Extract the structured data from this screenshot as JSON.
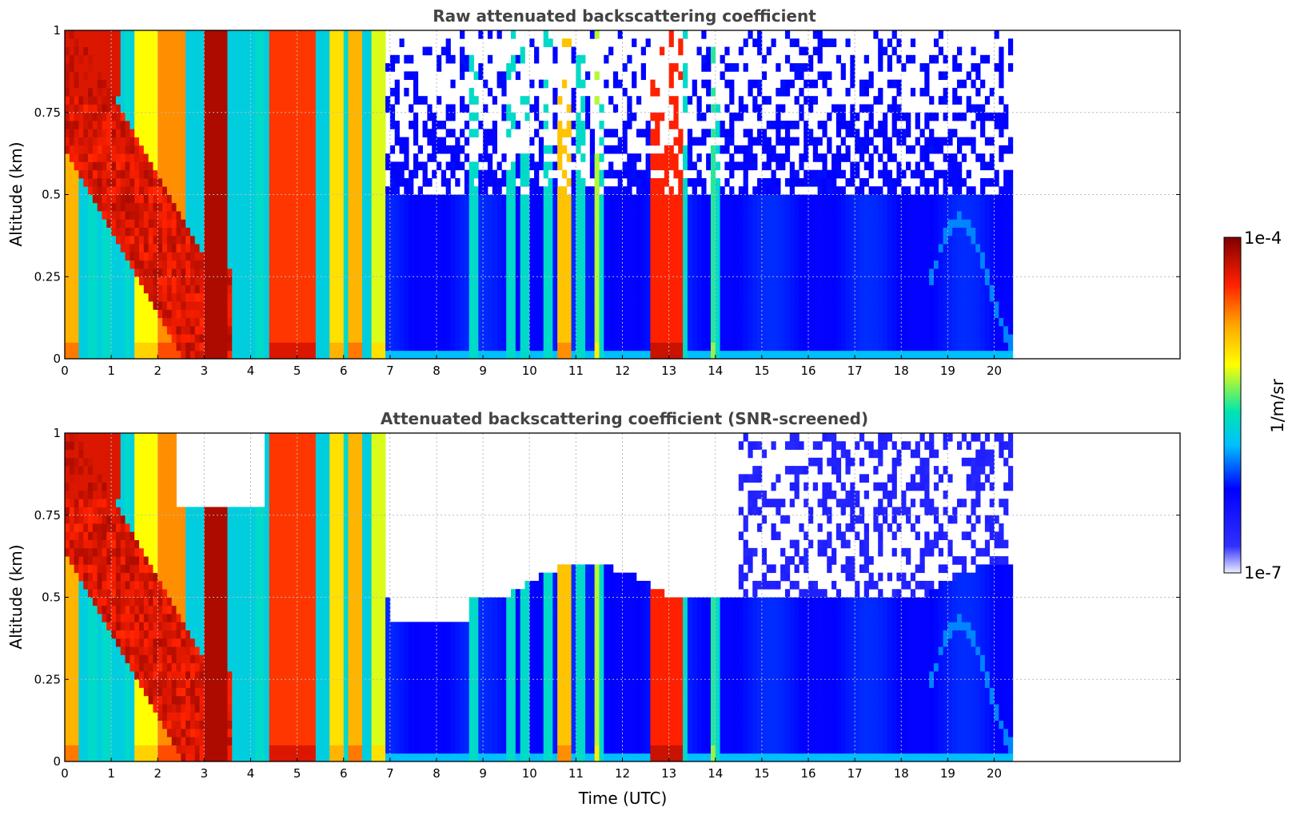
{
  "colors": {
    "colormap": [
      "#eef0ff",
      "#0000ff",
      "#00bfff",
      "#00e5b0",
      "#ffff00",
      "#ffa500",
      "#ff2000",
      "#800000"
    ],
    "background": "#ffffff",
    "title": "#444444"
  },
  "colorbar": {
    "max_label": "1e-4",
    "min_label": "1e-7",
    "unit_label": "1/m/sr",
    "scale": "log",
    "range": [
      1e-07,
      0.0001
    ]
  },
  "chart_data": [
    {
      "type": "heatmap",
      "title": "Raw attenuated backscattering coefficient",
      "xlabel": "",
      "ylabel": "Altitude (km)",
      "xlim": [
        0,
        24
      ],
      "ylim": [
        0,
        1
      ],
      "data_extent_x": [
        0,
        20.45
      ],
      "xticks": [
        "0",
        "1",
        "2",
        "3",
        "4",
        "5",
        "6",
        "7",
        "8",
        "9",
        "10",
        "11",
        "12",
        "13",
        "14",
        "15",
        "16",
        "17",
        "18",
        "19",
        "20"
      ],
      "yticks": [
        "0",
        "0.25",
        "0.5",
        "0.75",
        "1"
      ],
      "grid": true,
      "screened": false
    },
    {
      "type": "heatmap",
      "title": "Attenuated backscattering coefficient (SNR-screened)",
      "xlabel": "Time (UTC)",
      "ylabel": "Altitude (km)",
      "xlim": [
        0,
        24
      ],
      "ylim": [
        0,
        1
      ],
      "data_extent_x": [
        0,
        20.45
      ],
      "xticks": [
        "0",
        "1",
        "2",
        "3",
        "4",
        "5",
        "6",
        "7",
        "8",
        "9",
        "10",
        "11",
        "12",
        "13",
        "14",
        "15",
        "16",
        "17",
        "18",
        "19",
        "20"
      ],
      "yticks": [
        "0",
        "0.25",
        "0.5",
        "0.75",
        "1"
      ],
      "grid": true,
      "screened": true
    }
  ]
}
